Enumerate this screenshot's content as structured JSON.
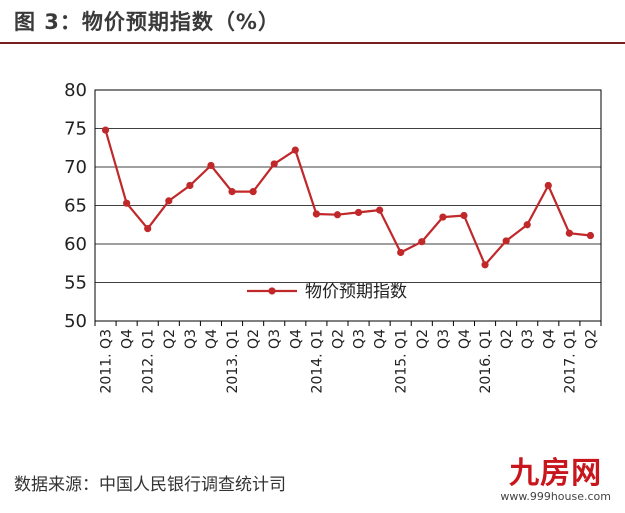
{
  "title": "图 3：物价预期指数（%）",
  "source": "数据来源：中国人民银行调查统计司",
  "watermark": {
    "main": "九房网",
    "url": "www.999house.com"
  },
  "colors": {
    "line": "#c0282a",
    "axis": "#000000",
    "rule": "#7a1f1f"
  },
  "chart_data": {
    "type": "line",
    "categories": [
      "2011. Q3",
      "Q4",
      "2012. Q1",
      "Q2",
      "Q3",
      "Q4",
      "2013. Q1",
      "Q2",
      "Q3",
      "Q4",
      "2014. Q1",
      "Q2",
      "Q3",
      "Q4",
      "2015. Q1",
      "Q2",
      "Q3",
      "Q4",
      "2016. Q1",
      "Q2",
      "Q3",
      "Q4",
      "2017. Q1",
      "Q2"
    ],
    "series": [
      {
        "name": "物价预期指数",
        "values": [
          74.8,
          65.3,
          62.0,
          65.6,
          67.6,
          70.2,
          66.8,
          66.8,
          70.4,
          72.2,
          63.9,
          63.8,
          64.1,
          64.4,
          58.9,
          60.3,
          63.5,
          63.7,
          57.3,
          60.4,
          62.5,
          67.6,
          61.4,
          61.1
        ]
      }
    ],
    "ylim": [
      50,
      80
    ],
    "yticks": [
      50,
      55,
      60,
      65,
      70,
      75,
      80
    ],
    "grid": true,
    "legend": "center",
    "title": "",
    "xlabel": "",
    "ylabel": ""
  }
}
